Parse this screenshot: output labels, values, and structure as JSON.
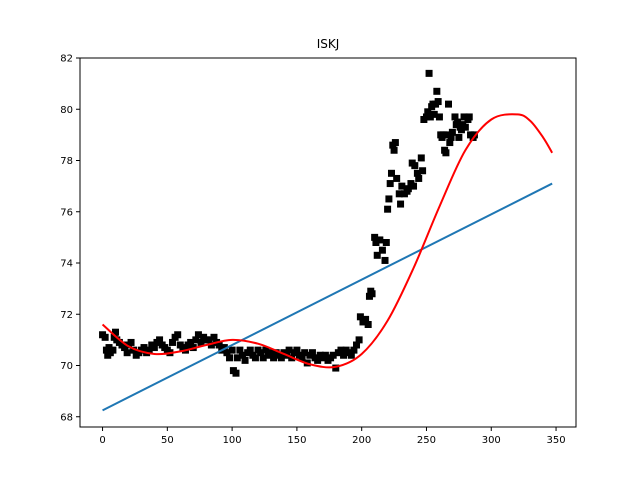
{
  "chart_data": {
    "type": "scatter",
    "title": "ISKJ",
    "xlabel": "",
    "ylabel": "",
    "xlim": [
      -17.4,
      365.4
    ],
    "ylim": [
      67.6,
      82
    ],
    "xticks": [
      0,
      50,
      100,
      150,
      200,
      250,
      300,
      350
    ],
    "yticks": [
      68,
      70,
      72,
      74,
      76,
      78,
      80,
      82
    ],
    "grid": false,
    "legend": "none",
    "series": [
      {
        "kind": "scatter",
        "marker": "square",
        "color": "#000000",
        "points": [
          [
            0,
            71.2
          ],
          [
            2,
            71.1
          ],
          [
            3,
            70.6
          ],
          [
            4,
            70.4
          ],
          [
            5,
            70.7
          ],
          [
            6,
            70.5
          ],
          [
            8,
            70.6
          ],
          [
            9,
            71.1
          ],
          [
            10,
            71.3
          ],
          [
            11,
            71.0
          ],
          [
            13,
            70.9
          ],
          [
            15,
            70.8
          ],
          [
            17,
            70.7
          ],
          [
            19,
            70.5
          ],
          [
            20,
            70.8
          ],
          [
            22,
            70.9
          ],
          [
            24,
            70.6
          ],
          [
            26,
            70.4
          ],
          [
            28,
            70.5
          ],
          [
            30,
            70.6
          ],
          [
            32,
            70.7
          ],
          [
            34,
            70.5
          ],
          [
            36,
            70.6
          ],
          [
            38,
            70.8
          ],
          [
            40,
            70.7
          ],
          [
            42,
            70.9
          ],
          [
            44,
            71.0
          ],
          [
            46,
            70.8
          ],
          [
            48,
            70.7
          ],
          [
            50,
            70.6
          ],
          [
            52,
            70.5
          ],
          [
            54,
            70.9
          ],
          [
            56,
            71.1
          ],
          [
            58,
            71.2
          ],
          [
            60,
            70.8
          ],
          [
            62,
            70.7
          ],
          [
            64,
            70.6
          ],
          [
            66,
            70.8
          ],
          [
            68,
            70.9
          ],
          [
            70,
            70.7
          ],
          [
            72,
            71.0
          ],
          [
            74,
            71.2
          ],
          [
            76,
            70.9
          ],
          [
            78,
            71.1
          ],
          [
            80,
            71.0
          ],
          [
            82,
            71.0
          ],
          [
            84,
            70.8
          ],
          [
            86,
            71.1
          ],
          [
            88,
            70.9
          ],
          [
            90,
            70.8
          ],
          [
            92,
            70.6
          ],
          [
            94,
            70.7
          ],
          [
            96,
            70.5
          ],
          [
            98,
            70.3
          ],
          [
            100,
            70.6
          ],
          [
            101,
            69.8
          ],
          [
            103,
            69.7
          ],
          [
            104,
            70.3
          ],
          [
            106,
            70.6
          ],
          [
            108,
            70.4
          ],
          [
            110,
            70.2
          ],
          [
            112,
            70.5
          ],
          [
            114,
            70.6
          ],
          [
            116,
            70.4
          ],
          [
            118,
            70.3
          ],
          [
            120,
            70.6
          ],
          [
            122,
            70.5
          ],
          [
            124,
            70.3
          ],
          [
            126,
            70.6
          ],
          [
            128,
            70.4
          ],
          [
            130,
            70.5
          ],
          [
            132,
            70.3
          ],
          [
            134,
            70.5
          ],
          [
            136,
            70.4
          ],
          [
            138,
            70.3
          ],
          [
            140,
            70.5
          ],
          [
            142,
            70.4
          ],
          [
            144,
            70.6
          ],
          [
            146,
            70.3
          ],
          [
            148,
            70.5
          ],
          [
            150,
            70.6
          ],
          [
            152,
            70.4
          ],
          [
            154,
            70.3
          ],
          [
            156,
            70.5
          ],
          [
            158,
            70.1
          ],
          [
            160,
            70.4
          ],
          [
            162,
            70.5
          ],
          [
            164,
            70.3
          ],
          [
            166,
            70.2
          ],
          [
            168,
            70.4
          ],
          [
            170,
            70.3
          ],
          [
            172,
            70.4
          ],
          [
            174,
            70.2
          ],
          [
            176,
            70.3
          ],
          [
            178,
            70.4
          ],
          [
            180,
            69.9
          ],
          [
            182,
            70.5
          ],
          [
            184,
            70.6
          ],
          [
            186,
            70.4
          ],
          [
            188,
            70.6
          ],
          [
            190,
            70.5
          ],
          [
            192,
            70.4
          ],
          [
            194,
            70.6
          ],
          [
            196,
            70.8
          ],
          [
            198,
            71.0
          ],
          [
            199,
            71.9
          ],
          [
            201,
            71.7
          ],
          [
            203,
            71.8
          ],
          [
            205,
            71.6
          ],
          [
            206,
            72.7
          ],
          [
            207,
            72.9
          ],
          [
            208,
            72.8
          ],
          [
            210,
            75.0
          ],
          [
            211,
            74.8
          ],
          [
            212,
            74.3
          ],
          [
            214,
            74.9
          ],
          [
            216,
            74.5
          ],
          [
            218,
            74.1
          ],
          [
            219,
            74.8
          ],
          [
            220,
            76.1
          ],
          [
            221,
            76.5
          ],
          [
            222,
            77.1
          ],
          [
            223,
            77.5
          ],
          [
            224,
            78.6
          ],
          [
            225,
            78.4
          ],
          [
            226,
            78.7
          ],
          [
            227,
            77.3
          ],
          [
            229,
            76.7
          ],
          [
            230,
            76.3
          ],
          [
            231,
            77.0
          ],
          [
            233,
            76.7
          ],
          [
            235,
            76.8
          ],
          [
            236,
            76.9
          ],
          [
            238,
            77.1
          ],
          [
            239,
            77.9
          ],
          [
            240,
            77.0
          ],
          [
            241,
            77.8
          ],
          [
            243,
            77.5
          ],
          [
            244,
            77.3
          ],
          [
            246,
            78.1
          ],
          [
            247,
            77.6
          ],
          [
            248,
            79.6
          ],
          [
            250,
            79.7
          ],
          [
            251,
            79.9
          ],
          [
            252,
            81.4
          ],
          [
            253,
            79.7
          ],
          [
            254,
            80.1
          ],
          [
            255,
            80.2
          ],
          [
            256,
            79.8
          ],
          [
            257,
            80.2
          ],
          [
            258,
            80.7
          ],
          [
            259,
            80.3
          ],
          [
            260,
            79.7
          ],
          [
            261,
            79.0
          ],
          [
            262,
            78.9
          ],
          [
            263,
            79.0
          ],
          [
            264,
            78.4
          ],
          [
            265,
            78.3
          ],
          [
            266,
            79.0
          ],
          [
            267,
            80.2
          ],
          [
            268,
            78.7
          ],
          [
            269,
            78.9
          ],
          [
            270,
            79.1
          ],
          [
            272,
            79.7
          ],
          [
            273,
            79.4
          ],
          [
            274,
            79.5
          ],
          [
            275,
            78.9
          ],
          [
            276,
            79.3
          ],
          [
            277,
            79.2
          ],
          [
            278,
            79.4
          ],
          [
            279,
            79.7
          ],
          [
            280,
            79.3
          ],
          [
            282,
            79.6
          ],
          [
            283,
            79.7
          ],
          [
            284,
            79.0
          ],
          [
            286,
            78.9
          ],
          [
            287,
            79.0
          ]
        ]
      },
      {
        "kind": "line",
        "color": "#1f77b4",
        "x": [
          0,
          347
        ],
        "y": [
          68.25,
          77.1
        ]
      },
      {
        "kind": "line",
        "color": "#ff0000",
        "x": [
          0,
          20,
          40,
          60,
          80,
          100,
          120,
          140,
          160,
          180,
          200,
          220,
          240,
          260,
          280,
          300,
          320,
          330,
          340,
          347
        ],
        "y": [
          71.6,
          70.75,
          70.45,
          70.55,
          70.8,
          71.0,
          70.85,
          70.45,
          70.05,
          69.95,
          70.45,
          71.75,
          73.8,
          76.2,
          78.4,
          79.6,
          79.8,
          79.55,
          78.9,
          78.3
        ]
      }
    ]
  }
}
